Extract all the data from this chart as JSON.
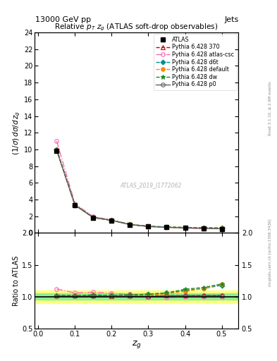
{
  "title_top": "13000 GeV pp",
  "title_right": "Jets",
  "plot_title": "Relative $p_T$ $z_g$ (ATLAS soft-drop observables)",
  "watermark": "ATLAS_2019_I1772062",
  "right_label_top": "Rivet 3.1.10, ≥ 2.6M events",
  "right_label_bottom": "mcplots.cern.ch [arXiv:1306.3436]",
  "ylim_main": [
    0,
    24
  ],
  "ylim_ratio": [
    0.5,
    2.0
  ],
  "zg_values": [
    0.05,
    0.1,
    0.15,
    0.2,
    0.25,
    0.3,
    0.35,
    0.4,
    0.45,
    0.5
  ],
  "atlas_data": [
    9.8,
    3.3,
    1.82,
    1.5,
    1.0,
    0.78,
    0.68,
    0.6,
    0.55,
    0.5
  ],
  "py6_370": [
    10.0,
    3.35,
    1.85,
    1.52,
    1.02,
    0.79,
    0.69,
    0.61,
    0.56,
    0.51
  ],
  "py6_atlascsc": [
    11.0,
    3.5,
    1.95,
    1.58,
    1.04,
    0.79,
    0.68,
    0.6,
    0.55,
    0.5
  ],
  "py6_d6t": [
    10.0,
    3.35,
    1.87,
    1.53,
    1.03,
    0.81,
    0.72,
    0.66,
    0.62,
    0.59
  ],
  "py6_default": [
    10.0,
    3.35,
    1.87,
    1.52,
    1.02,
    0.8,
    0.71,
    0.65,
    0.62,
    0.6
  ],
  "py6_dw": [
    10.0,
    3.35,
    1.87,
    1.53,
    1.03,
    0.81,
    0.72,
    0.67,
    0.63,
    0.6
  ],
  "py6_p0": [
    9.9,
    3.32,
    1.84,
    1.51,
    1.01,
    0.78,
    0.69,
    0.61,
    0.56,
    0.51
  ],
  "ratio_370": [
    1.02,
    1.015,
    1.016,
    1.013,
    1.02,
    1.013,
    1.015,
    1.017,
    1.018,
    1.02
  ],
  "ratio_atlascsc": [
    1.12,
    1.06,
    1.07,
    1.053,
    1.04,
    1.013,
    0.985,
    1.0,
    1.0,
    1.0
  ],
  "ratio_d6t": [
    1.02,
    1.015,
    1.027,
    1.02,
    1.03,
    1.038,
    1.059,
    1.1,
    1.127,
    1.18
  ],
  "ratio_default": [
    1.02,
    1.015,
    1.027,
    1.013,
    1.02,
    1.026,
    1.044,
    1.083,
    1.127,
    1.2
  ],
  "ratio_dw": [
    1.02,
    1.015,
    1.027,
    1.02,
    1.03,
    1.038,
    1.059,
    1.117,
    1.145,
    1.2
  ],
  "ratio_p0": [
    1.01,
    1.006,
    1.011,
    1.007,
    1.01,
    1.0,
    1.015,
    1.017,
    1.018,
    1.02
  ],
  "color_370": "#cc0000",
  "color_atlascsc": "#ff69b4",
  "color_d6t": "#009090",
  "color_default": "#ff8c00",
  "color_dw": "#228b22",
  "color_p0": "#606060",
  "color_atlas": "#000000",
  "band_color_green": "#90ee90",
  "band_color_yellow": "#ffff80",
  "band_green_lo": 0.95,
  "band_green_hi": 1.05,
  "band_yellow_lo": 0.9,
  "band_yellow_hi": 1.1
}
